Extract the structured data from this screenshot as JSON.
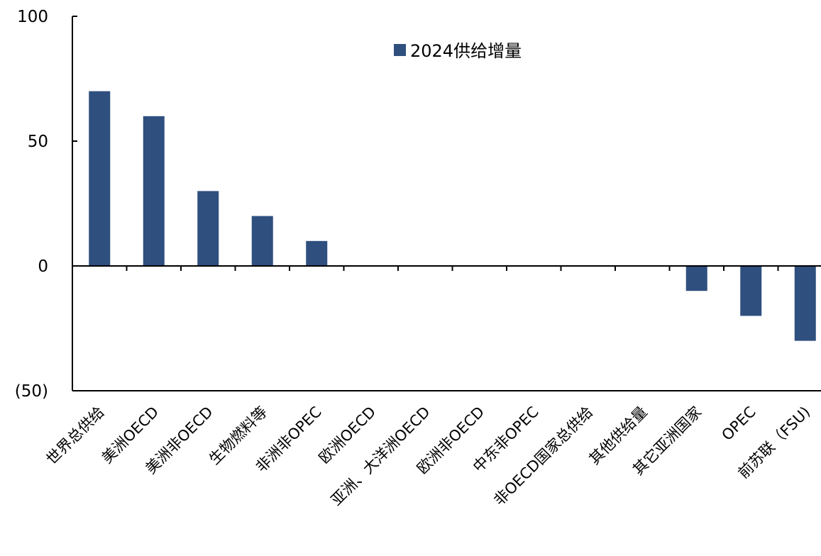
{
  "chart_data": {
    "type": "bar",
    "title": "",
    "xlabel": "",
    "ylabel": "",
    "ylim": [
      -50,
      100
    ],
    "yticks": [
      {
        "value": 100,
        "label": "100"
      },
      {
        "value": 50,
        "label": "50"
      },
      {
        "value": 0,
        "label": "0"
      },
      {
        "value": -50,
        "label": "(50)"
      }
    ],
    "negative_tick_color": "#ff0000",
    "categories": [
      "世界总供给",
      "美洲OECD",
      "美洲非OECD",
      "生物燃料等",
      "非洲非OPEC",
      "欧洲OECD",
      "亚洲、大洋洲OECD",
      "欧洲非OECD",
      "中东非OPEC",
      "非OECD国家总供给",
      "其他供给量",
      "其它亚洲国家",
      "OPEC",
      "前苏联（FSU)"
    ],
    "series": [
      {
        "name": "2024供给增量",
        "color": "#2f4f7f",
        "values": [
          70,
          60,
          30,
          20,
          10,
          0,
          0,
          0,
          0,
          0,
          0,
          -10,
          -20,
          -30
        ]
      }
    ],
    "legend_position": "top-center",
    "grid": false
  }
}
